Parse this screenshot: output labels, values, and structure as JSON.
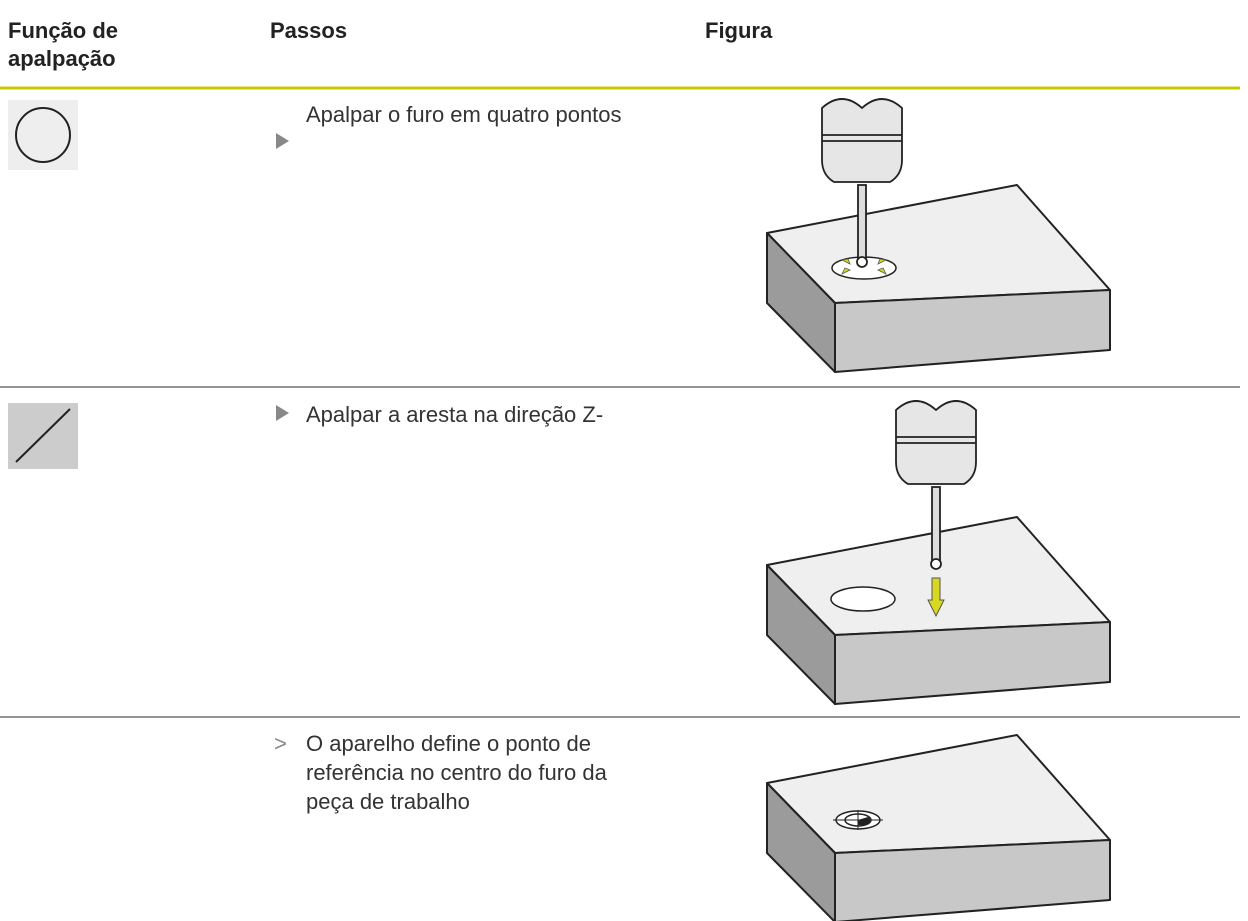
{
  "table": {
    "header": [
      "Função de apalpação",
      "Passos",
      "Figura"
    ],
    "rows": [
      {
        "step": "Apalpar o furo em quatro pontos"
      },
      {
        "step": "Apalpar a aresta na direção Z-"
      },
      {
        "marker": ">",
        "step": "O aparelho define o ponto de referência no centro do furo da peça de trabalho"
      }
    ]
  }
}
